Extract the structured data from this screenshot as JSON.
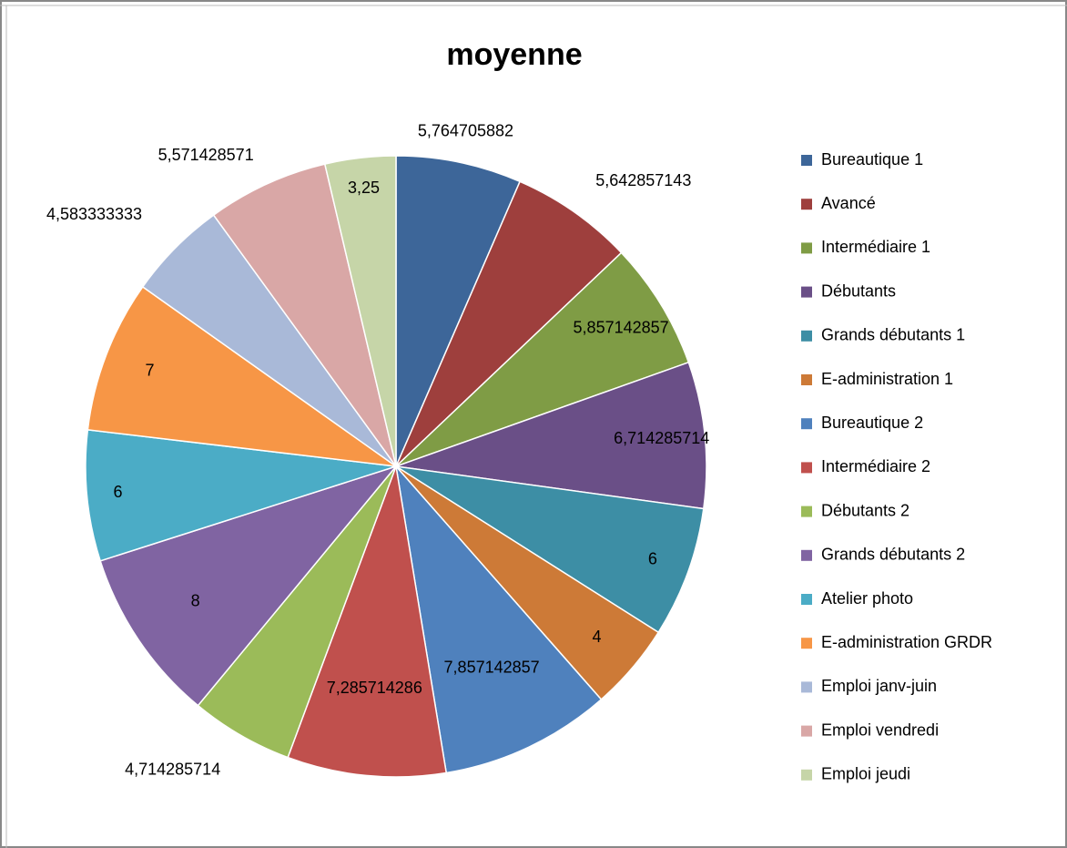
{
  "chart_data": {
    "type": "pie",
    "title": "moyenne",
    "categories": [
      "Bureautique 1",
      "Avancé",
      "Intermédiaire 1",
      "Débutants",
      "Grands débutants 1",
      "E-administration 1",
      "Bureautique 2",
      "Intermédiaire 2",
      "Débutants 2",
      "Grands débutants 2",
      "Atelier photo",
      "E-administration GRDR",
      "Emploi janv-juin",
      "Emploi vendredi",
      "Emploi jeudi"
    ],
    "values": [
      5.764705882,
      5.642857143,
      5.857142857,
      6.714285714,
      6,
      4,
      7.857142857,
      7.285714286,
      4.714285714,
      8,
      6,
      7,
      4.583333333,
      5.571428571,
      3.25
    ],
    "value_labels": [
      "5,764705882",
      "5,642857143",
      "5,857142857",
      "6,714285714",
      "6",
      "4",
      "7,857142857",
      "7,285714286",
      "4,714285714",
      "8",
      "6",
      "7",
      "4,583333333",
      "5,571428571",
      "3,25"
    ],
    "colors": [
      "#3d6699",
      "#9e3f3d",
      "#7f9c45",
      "#6a4f87",
      "#3d8ea5",
      "#cd7a37",
      "#4f81bd",
      "#c0504d",
      "#9bbb59",
      "#8064a2",
      "#4bacc6",
      "#f79646",
      "#a9b9d8",
      "#d9a7a6",
      "#c6d5a8"
    ],
    "legend": "right"
  }
}
